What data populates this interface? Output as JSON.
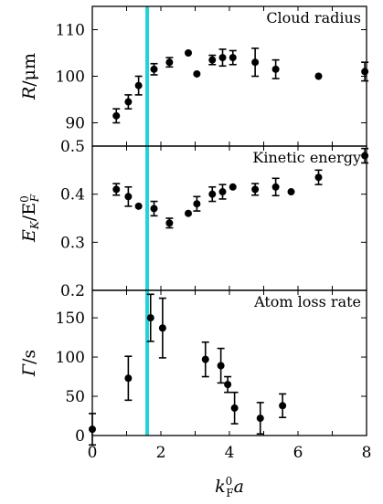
{
  "chart_data": [
    {
      "type": "scatter",
      "title": "Cloud radius",
      "ylabel_html": {
        "main": "R",
        "rest": "/μm"
      },
      "ylim": [
        85,
        115
      ],
      "yticks": [
        90,
        100,
        110
      ],
      "ytick_labels": [
        "90",
        "100",
        "110"
      ],
      "xlim": [
        0,
        8
      ],
      "series": [
        {
          "x": [
            0.7,
            1.05,
            1.35,
            1.8,
            2.25,
            2.8,
            3.05,
            3.5,
            3.8,
            4.1,
            4.75,
            5.35,
            6.6,
            7.95
          ],
          "y": [
            91.5,
            94.5,
            98,
            101.5,
            103,
            105,
            100.5,
            103.5,
            104,
            104,
            103,
            101.5,
            100,
            101
          ],
          "yerr": [
            1.5,
            1.5,
            2,
            1.2,
            1,
            0,
            0,
            1,
            1.8,
            1.5,
            3,
            2,
            0,
            2
          ]
        }
      ]
    },
    {
      "type": "scatter",
      "title": "Kinetic energy",
      "ylabel_html": {
        "main": "E",
        "sub": "K",
        "rest": "/E",
        "sup2": "0",
        "sub2": "F"
      },
      "ylim": [
        0.2,
        0.5
      ],
      "yticks": [
        0.2,
        0.3,
        0.4,
        0.5
      ],
      "ytick_labels": [
        "0.2",
        "0.3",
        "0.4",
        "0.5"
      ],
      "xlim": [
        0,
        8
      ],
      "series": [
        {
          "x": [
            0.7,
            1.05,
            1.35,
            1.8,
            2.25,
            2.8,
            3.05,
            3.5,
            3.8,
            4.1,
            4.75,
            5.35,
            5.8,
            6.6,
            7.95
          ],
          "y": [
            0.41,
            0.395,
            0.375,
            0.37,
            0.34,
            0.36,
            0.38,
            0.4,
            0.405,
            0.415,
            0.41,
            0.415,
            0.405,
            0.435,
            0.48
          ],
          "yerr": [
            0.012,
            0.02,
            0,
            0.015,
            0.01,
            0,
            0.015,
            0.015,
            0.015,
            0,
            0.012,
            0.018,
            0,
            0.015,
            0.015
          ]
        }
      ]
    },
    {
      "type": "scatter",
      "title": "Atom loss rate",
      "ylabel_html": {
        "main": "Γ",
        "rest": "/s"
      },
      "ylim": [
        0,
        185
      ],
      "yticks": [
        0,
        50,
        100,
        150
      ],
      "ytick_labels": [
        "0",
        "50",
        "100",
        "150"
      ],
      "xlim": [
        0,
        8
      ],
      "xticks": [
        0,
        2,
        4,
        6,
        8
      ],
      "xtick_labels": [
        "0",
        "2",
        "4",
        "6",
        "8"
      ],
      "xlabel_html": {
        "main": "k",
        "sup": "0",
        "sub": "F",
        "rest": "a"
      },
      "series": [
        {
          "x": [
            0,
            1.05,
            1.7,
            2.05,
            3.3,
            3.75,
            3.95,
            4.15,
            4.9,
            5.55
          ],
          "y": [
            8,
            73,
            150,
            137,
            97,
            89,
            65,
            35,
            22,
            38
          ],
          "yerr": [
            20,
            28,
            30,
            38,
            22,
            22,
            10,
            20,
            20,
            15
          ]
        }
      ]
    }
  ],
  "annotation": {
    "vertical_line_x": 1.6,
    "vertical_line_color": "#22d3d8"
  }
}
